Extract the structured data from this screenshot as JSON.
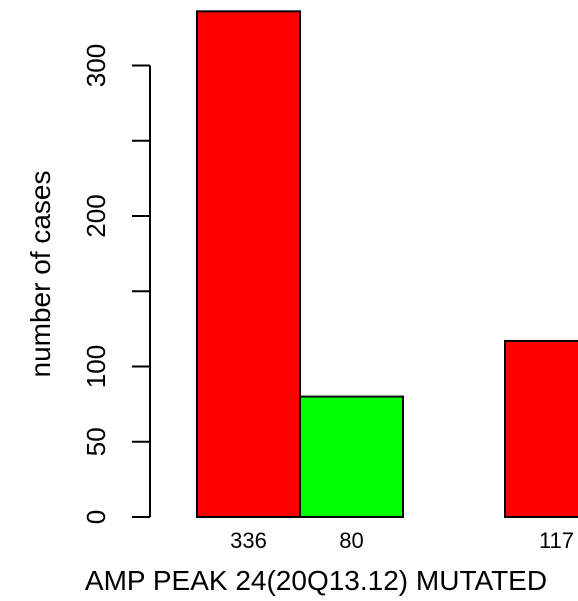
{
  "chart_data": {
    "type": "bar",
    "title": "",
    "xlabel": "AMP PEAK 24(20Q13.12) MUTATED",
    "ylabel": "number of cases",
    "ylim": [
      0,
      340
    ],
    "yticks": [
      0,
      50,
      100,
      200,
      300
    ],
    "grid": false,
    "legend": "none",
    "bars": [
      {
        "value": 336,
        "label": "336",
        "color": "#ff0000",
        "group": 1
      },
      {
        "value": 80,
        "label": "80",
        "color": "#00ff00",
        "group": 1
      },
      {
        "value": 117,
        "label": "117",
        "color": "#ff0000",
        "group": 2
      }
    ]
  }
}
